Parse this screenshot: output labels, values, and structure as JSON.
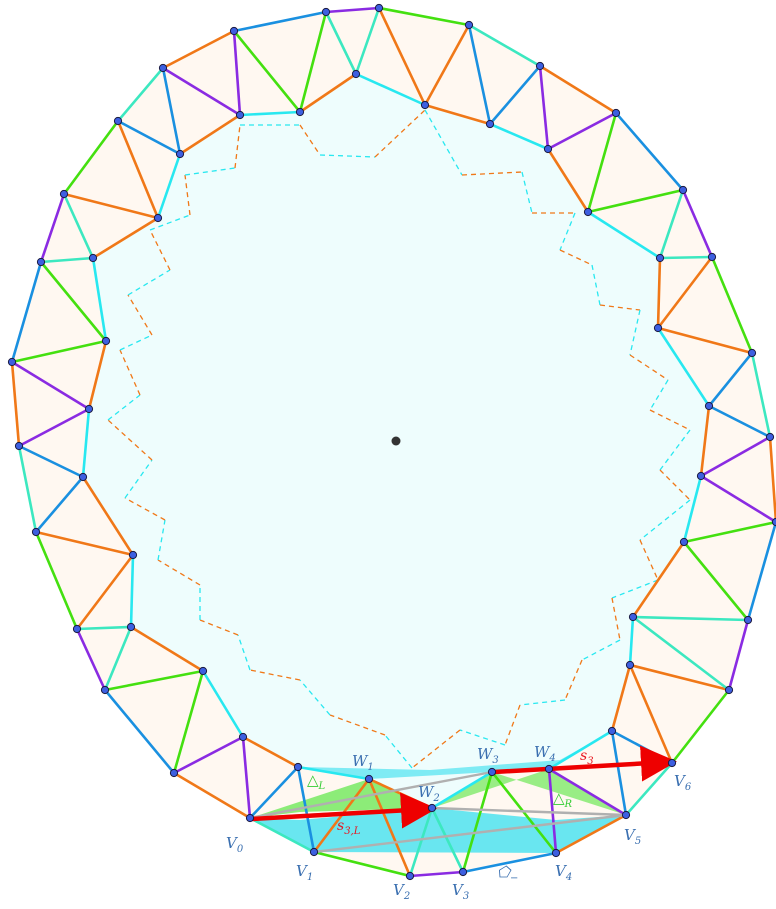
{
  "diagram": {
    "labels": {
      "v0": {
        "main": "V",
        "sub": "0"
      },
      "v1": {
        "main": "V",
        "sub": "1"
      },
      "v2": {
        "main": "V",
        "sub": "2"
      },
      "v3": {
        "main": "V",
        "sub": "3"
      },
      "v4": {
        "main": "V",
        "sub": "4"
      },
      "v5": {
        "main": "V",
        "sub": "5"
      },
      "v6": {
        "main": "V",
        "sub": "6"
      },
      "w1": {
        "main": "W",
        "sub": "1"
      },
      "w2": {
        "main": "W",
        "sub": "2"
      },
      "w3": {
        "main": "W",
        "sub": "3"
      },
      "w4": {
        "main": "W",
        "sub": "4"
      },
      "s3L": {
        "main": "s",
        "sub": "3,L"
      },
      "s3": {
        "main": "s",
        "sub": "3"
      },
      "deltaL": {
        "main": "△",
        "sub": "L"
      },
      "deltaR": {
        "main": "△",
        "sub": "R"
      },
      "pentMinus": {
        "main": "⬠",
        "sub": "−"
      }
    },
    "colors": {
      "orange": "#f07818",
      "blue": "#1a90e0",
      "purple": "#8a2be2",
      "green": "#44e010",
      "teal": "#3ce8c0",
      "cyan": "#28e8f0",
      "red": "#ee0000",
      "gray": "#b0b0b0",
      "fill_inner": "#eefdfd",
      "fill_orange": "#fff1e4",
      "fill_cyan": "#4fe3f0",
      "fill_green": "#7fea6a",
      "vertex": "#3d5fe0",
      "center": "#333333"
    }
  }
}
